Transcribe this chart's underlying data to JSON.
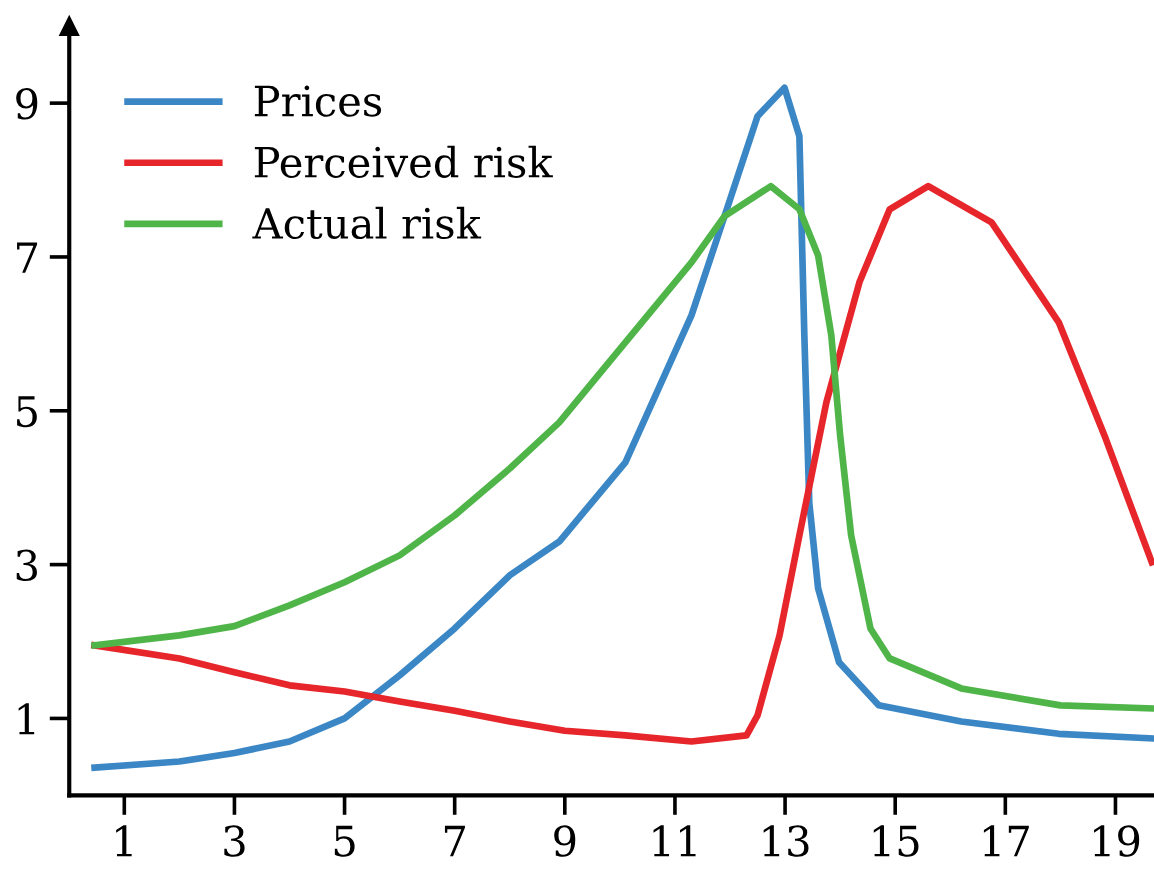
{
  "chart_data": {
    "type": "line",
    "xlim": [
      0,
      19.7
    ],
    "ylim": [
      0,
      10
    ],
    "xticks": [
      1,
      3,
      5,
      7,
      9,
      11,
      13,
      15,
      17,
      19
    ],
    "yticks": [
      1,
      3,
      5,
      7,
      9
    ],
    "grid": false,
    "legend": "top left",
    "marker": "none",
    "line_style": "solid",
    "series": [
      {
        "name": "Prices",
        "color": "#3b87c5",
        "x": [
          0.46,
          2,
          3,
          4,
          5,
          6,
          7,
          8,
          8.9,
          10.1,
          11.3,
          11.9,
          12.5,
          12.99,
          13.26,
          13.35,
          13.44,
          13.6,
          13.98,
          14.7,
          16.2,
          17.97,
          19.66
        ],
        "values": [
          0.36,
          0.44,
          0.55,
          0.7,
          1.0,
          1.56,
          2.17,
          2.86,
          3.3,
          4.33,
          6.24,
          7.53,
          8.83,
          9.2,
          8.57,
          5.98,
          3.8,
          2.69,
          1.73,
          1.17,
          0.96,
          0.8,
          0.74
        ]
      },
      {
        "name": "Perceived risk",
        "color": "#e6262b",
        "x": [
          0.46,
          2,
          3,
          4,
          5,
          6,
          7,
          8,
          9,
          10.1,
          11.3,
          12.3,
          12.5,
          12.9,
          13.26,
          13.75,
          14.35,
          14.9,
          15.6,
          16.75,
          17.97,
          18.8,
          19.66
        ],
        "values": [
          1.95,
          1.78,
          1.6,
          1.43,
          1.35,
          1.22,
          1.1,
          0.96,
          0.84,
          0.78,
          0.7,
          0.78,
          1.04,
          2.08,
          3.38,
          5.11,
          6.67,
          7.62,
          7.92,
          7.45,
          6.15,
          4.68,
          3.03
        ]
      },
      {
        "name": "Actual risk",
        "color": "#4fb549",
        "x": [
          0.46,
          2,
          3,
          4,
          5,
          6,
          7,
          8,
          8.9,
          10.1,
          11.3,
          11.9,
          12.74,
          13.26,
          13.6,
          13.84,
          14.0,
          14.2,
          14.55,
          14.9,
          16.2,
          18.0,
          19.66
        ],
        "values": [
          1.95,
          2.08,
          2.2,
          2.47,
          2.77,
          3.12,
          3.64,
          4.25,
          4.85,
          5.89,
          6.93,
          7.53,
          7.92,
          7.62,
          7.02,
          5.98,
          4.68,
          3.38,
          2.17,
          1.78,
          1.39,
          1.17,
          1.13
        ]
      }
    ]
  }
}
